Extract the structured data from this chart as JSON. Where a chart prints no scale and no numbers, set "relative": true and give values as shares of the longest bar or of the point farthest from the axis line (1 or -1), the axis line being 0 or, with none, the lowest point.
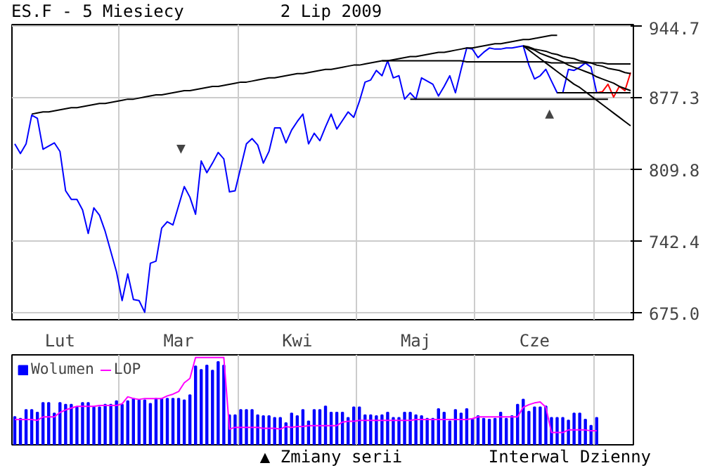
{
  "chart_data": [
    {
      "type": "line",
      "title": "ES.F - 5 Miesiecy",
      "subtitle": "2 Lip 2009",
      "categories": [
        null,
        null,
        null,
        null,
        null,
        null,
        null,
        null,
        "Lut",
        null,
        null,
        null,
        null,
        null,
        null,
        null,
        null,
        null,
        null,
        null,
        null,
        null,
        null,
        null,
        null,
        null,
        null,
        null,
        null,
        "Mar",
        null,
        null,
        null,
        null,
        null,
        null,
        null,
        null,
        null,
        null,
        null,
        null,
        null,
        null,
        null,
        null,
        null,
        null,
        null,
        null,
        "Kwi",
        null,
        null,
        null,
        null,
        null,
        null,
        null,
        null,
        null,
        null,
        null,
        null,
        null,
        null,
        null,
        null,
        null,
        null,
        null,
        null,
        "Maj",
        null,
        null,
        null,
        null,
        null,
        null,
        null,
        null,
        null,
        null,
        null,
        null,
        null,
        null,
        null,
        null,
        null,
        null,
        null,
        null,
        "Cze",
        null,
        null,
        null,
        null,
        null,
        null,
        null,
        null,
        null,
        null,
        null,
        null,
        null,
        null,
        null,
        null,
        null
      ],
      "ylim": [
        669,
        946
      ],
      "yticks": [
        {
          "value": 675,
          "label": "675.0"
        },
        742.4,
        809.8,
        877.3,
        944.7
      ],
      "grid": true,
      "annotations": [
        "▼",
        "▲"
      ],
      "series": [
        {
          "color": "#0000ff",
          "values": [
            834,
            825,
            834,
            861,
            858,
            829,
            832,
            835,
            827,
            790,
            782,
            782,
            772,
            750,
            774,
            767,
            752,
            733,
            714,
            687,
            712,
            688,
            687,
            676,
            722,
            724,
            755,
            761,
            758,
            776,
            794,
            784,
            768,
            818,
            807,
            816,
            826,
            820,
            789,
            790,
            812,
            834,
            839,
            833,
            816,
            827,
            849,
            849,
            835,
            847,
            855,
            862,
            834,
            844,
            837,
            850,
            862,
            848,
            856,
            864,
            859,
            874,
            892,
            894,
            903,
            898,
            912,
            896,
            898,
            876,
            882,
            876,
            896,
            893,
            890,
            879,
            888,
            898,
            882,
            904,
            924,
            923,
            915,
            920,
            924,
            923,
            923,
            924,
            924,
            925,
            926,
            908,
            895,
            898,
            904,
            893,
            882,
            882,
            904,
            903,
            906,
            910,
            906,
            882,
            null,
            null,
            null,
            null,
            null,
            null
          ]
        },
        {
          "color": "#ff0000",
          "values": [
            null,
            null,
            null,
            null,
            null,
            null,
            null,
            null,
            null,
            null,
            null,
            null,
            null,
            null,
            null,
            null,
            null,
            null,
            null,
            null,
            null,
            null,
            null,
            null,
            null,
            null,
            null,
            null,
            null,
            null,
            null,
            null,
            null,
            null,
            null,
            null,
            null,
            null,
            null,
            null,
            null,
            null,
            null,
            null,
            null,
            null,
            null,
            null,
            null,
            null,
            null,
            null,
            null,
            null,
            null,
            null,
            null,
            null,
            null,
            null,
            null,
            null,
            null,
            null,
            null,
            null,
            null,
            null,
            null,
            null,
            null,
            null,
            null,
            null,
            null,
            null,
            null,
            null,
            null,
            null,
            null,
            null,
            null,
            null,
            null,
            null,
            null,
            null,
            null,
            null,
            null,
            null,
            null,
            null,
            null,
            null,
            null,
            null,
            null,
            null,
            null,
            null,
            null,
            882,
            883,
            890,
            878,
            888,
            884,
            901
          ]
        },
        {
          "color": "#000000",
          "values": [
            null,
            null,
            null,
            862,
            863,
            864,
            864,
            865,
            866,
            867,
            868,
            868,
            869,
            870,
            871,
            872,
            872,
            873,
            874,
            875,
            876,
            876,
            877,
            878,
            879,
            880,
            880,
            881,
            882,
            883,
            884,
            884,
            885,
            886,
            887,
            888,
            888,
            889,
            890,
            891,
            892,
            892,
            893,
            894,
            895,
            896,
            896,
            897,
            898,
            899,
            900,
            900,
            901,
            902,
            903,
            904,
            904,
            905,
            906,
            907,
            908,
            908,
            909,
            910,
            911,
            912,
            912,
            913,
            914,
            915,
            916,
            916,
            917,
            918,
            919,
            920,
            920,
            921,
            922,
            923,
            924,
            924,
            925,
            926,
            927,
            928,
            928,
            929,
            930,
            931,
            932,
            932,
            933,
            934,
            935,
            936,
            936,
            null,
            null,
            null,
            null,
            null,
            null,
            null,
            null,
            null,
            null,
            null,
            null,
            null
          ]
        },
        {
          "color": "#000000",
          "values": [
            null,
            null,
            null,
            null,
            null,
            null,
            null,
            null,
            null,
            null,
            null,
            null,
            null,
            null,
            null,
            null,
            null,
            null,
            null,
            null,
            null,
            null,
            null,
            null,
            null,
            null,
            null,
            null,
            null,
            null,
            null,
            null,
            null,
            null,
            null,
            null,
            null,
            null,
            null,
            null,
            null,
            null,
            null,
            null,
            null,
            null,
            null,
            null,
            null,
            null,
            null,
            null,
            null,
            null,
            null,
            null,
            null,
            null,
            null,
            null,
            null,
            null,
            null,
            null,
            null,
            912,
            912,
            912,
            912,
            912,
            912,
            912,
            912,
            912,
            912,
            912,
            912,
            912,
            912,
            912,
            911,
            911,
            911,
            911,
            911,
            911,
            911,
            911,
            911,
            911,
            911,
            911,
            911,
            911,
            911,
            910,
            910,
            910,
            910,
            910,
            910,
            910,
            910,
            910,
            910,
            909,
            909,
            909,
            909,
            909
          ]
        },
        {
          "color": "#000000",
          "values": [
            null,
            null,
            null,
            null,
            null,
            null,
            null,
            null,
            null,
            null,
            null,
            null,
            null,
            null,
            null,
            null,
            null,
            null,
            null,
            null,
            null,
            null,
            null,
            null,
            null,
            null,
            null,
            null,
            null,
            null,
            null,
            null,
            null,
            null,
            null,
            null,
            null,
            null,
            null,
            null,
            null,
            null,
            null,
            null,
            null,
            null,
            null,
            null,
            null,
            null,
            null,
            null,
            null,
            null,
            null,
            null,
            null,
            null,
            null,
            null,
            null,
            null,
            null,
            null,
            null,
            null,
            null,
            null,
            null,
            null,
            876,
            876,
            876,
            876,
            876,
            876,
            876,
            876,
            876,
            876,
            876,
            876,
            876,
            876,
            876,
            876,
            876,
            876,
            876,
            876,
            876,
            876,
            876,
            876,
            876,
            876,
            876,
            876,
            876,
            876,
            876,
            876,
            876,
            876,
            876,
            876,
            null,
            null,
            null,
            null
          ]
        },
        {
          "color": "#000000",
          "values": [
            null,
            null,
            null,
            null,
            null,
            null,
            null,
            null,
            null,
            null,
            null,
            null,
            null,
            null,
            null,
            null,
            null,
            null,
            null,
            null,
            null,
            null,
            null,
            null,
            null,
            null,
            null,
            null,
            null,
            null,
            null,
            null,
            null,
            null,
            null,
            null,
            null,
            null,
            null,
            null,
            null,
            null,
            null,
            null,
            null,
            null,
            null,
            null,
            null,
            null,
            null,
            null,
            null,
            null,
            null,
            null,
            null,
            null,
            null,
            null,
            null,
            null,
            null,
            null,
            null,
            null,
            null,
            null,
            null,
            null,
            null,
            null,
            null,
            null,
            null,
            null,
            null,
            null,
            null,
            null,
            null,
            null,
            null,
            null,
            null,
            null,
            null,
            null,
            null,
            null,
            null,
            null,
            null,
            null,
            null,
            null,
            882,
            882,
            882,
            882,
            882,
            882,
            882,
            882,
            882,
            882,
            882,
            882,
            882,
            882
          ]
        },
        {
          "color": "#000000",
          "values": [
            null,
            null,
            null,
            null,
            null,
            null,
            null,
            null,
            null,
            null,
            null,
            null,
            null,
            null,
            null,
            null,
            null,
            null,
            null,
            null,
            null,
            null,
            null,
            null,
            null,
            null,
            null,
            null,
            null,
            null,
            null,
            null,
            null,
            null,
            null,
            null,
            null,
            null,
            null,
            null,
            null,
            null,
            null,
            null,
            null,
            null,
            null,
            null,
            null,
            null,
            null,
            null,
            null,
            null,
            null,
            null,
            null,
            null,
            null,
            null,
            null,
            null,
            null,
            null,
            null,
            null,
            null,
            null,
            null,
            null,
            null,
            null,
            null,
            null,
            null,
            null,
            null,
            null,
            null,
            null,
            null,
            null,
            null,
            null,
            null,
            null,
            null,
            null,
            null,
            null,
            926,
            925,
            923,
            922,
            921,
            919,
            918,
            916,
            915,
            914,
            912,
            911,
            910,
            908,
            907,
            905,
            904,
            903,
            901,
            900
          ]
        },
        {
          "color": "#000000",
          "values": [
            null,
            null,
            null,
            null,
            null,
            null,
            null,
            null,
            null,
            null,
            null,
            null,
            null,
            null,
            null,
            null,
            null,
            null,
            null,
            null,
            null,
            null,
            null,
            null,
            null,
            null,
            null,
            null,
            null,
            null,
            null,
            null,
            null,
            null,
            null,
            null,
            null,
            null,
            null,
            null,
            null,
            null,
            null,
            null,
            null,
            null,
            null,
            null,
            null,
            null,
            null,
            null,
            null,
            null,
            null,
            null,
            null,
            null,
            null,
            null,
            null,
            null,
            null,
            null,
            null,
            null,
            null,
            null,
            null,
            null,
            null,
            null,
            null,
            null,
            null,
            null,
            null,
            null,
            null,
            null,
            null,
            null,
            null,
            null,
            null,
            null,
            null,
            null,
            null,
            null,
            926,
            924,
            922,
            919,
            917,
            915,
            913,
            911,
            908,
            906,
            904,
            902,
            900,
            897,
            895,
            893,
            891,
            888,
            886,
            884
          ]
        },
        {
          "color": "#000000",
          "values": [
            null,
            null,
            null,
            null,
            null,
            null,
            null,
            null,
            null,
            null,
            null,
            null,
            null,
            null,
            null,
            null,
            null,
            null,
            null,
            null,
            null,
            null,
            null,
            null,
            null,
            null,
            null,
            null,
            null,
            null,
            null,
            null,
            null,
            null,
            null,
            null,
            null,
            null,
            null,
            null,
            null,
            null,
            null,
            null,
            null,
            null,
            null,
            null,
            null,
            null,
            null,
            null,
            null,
            null,
            null,
            null,
            null,
            null,
            null,
            null,
            null,
            null,
            null,
            null,
            null,
            null,
            null,
            null,
            null,
            null,
            null,
            null,
            null,
            null,
            null,
            null,
            null,
            null,
            null,
            null,
            null,
            null,
            null,
            null,
            null,
            null,
            null,
            null,
            null,
            null,
            926,
            922,
            918,
            914,
            910,
            906,
            902,
            898,
            894,
            890,
            887,
            883,
            879,
            875,
            871,
            867,
            863,
            859,
            855,
            851
          ]
        }
      ]
    },
    {
      "type": "bar",
      "relative": true,
      "legend": "top left",
      "grid": "x",
      "categories": [
        null,
        null,
        null,
        null,
        null,
        null,
        null,
        null,
        null,
        null,
        null,
        null,
        null,
        null,
        null,
        null,
        null,
        null,
        null,
        null,
        null,
        null,
        null,
        null,
        null,
        null,
        null,
        null,
        null,
        null,
        null,
        null,
        null,
        null,
        null,
        null,
        null,
        null,
        null,
        null,
        null,
        null,
        null,
        null,
        null,
        null,
        null,
        null,
        null,
        null,
        null,
        null,
        null,
        null,
        null,
        null,
        null,
        null,
        null,
        null,
        null,
        null,
        null,
        null,
        null,
        null,
        null,
        null,
        null,
        null,
        null,
        null,
        null,
        null,
        null,
        null,
        null,
        null,
        null,
        null,
        null,
        null,
        null,
        null,
        null,
        null,
        null,
        null,
        null,
        null,
        null,
        null,
        null,
        null,
        null,
        null,
        null,
        null,
        null,
        null,
        null,
        null,
        null,
        null,
        null,
        null,
        null,
        null,
        null,
        null
      ],
      "annotations": [
        "▲ Zmiany serii",
        "Interwal Dzienny"
      ],
      "series": [
        {
          "name": "Wolumen",
          "color": "#0000ff",
          "values": [
            0.32,
            0.3,
            0.4,
            0.4,
            0.37,
            0.48,
            0.48,
            0.36,
            0.48,
            0.46,
            0.46,
            0.43,
            0.48,
            0.48,
            0.43,
            0.43,
            0.46,
            0.46,
            0.5,
            0.46,
            0.5,
            0.53,
            0.51,
            0.51,
            0.47,
            0.53,
            0.53,
            0.53,
            0.53,
            0.53,
            0.51,
            0.57,
            0.9,
            0.86,
            0.91,
            0.85,
            0.95,
            0.91,
            0.34,
            0.34,
            0.4,
            0.4,
            0.4,
            0.34,
            0.33,
            0.33,
            0.31,
            0.31,
            0.25,
            0.36,
            0.33,
            0.4,
            0.27,
            0.4,
            0.4,
            0.44,
            0.37,
            0.37,
            0.37,
            0.31,
            0.43,
            0.43,
            0.34,
            0.34,
            0.33,
            0.34,
            0.37,
            0.31,
            0.31,
            0.37,
            0.37,
            0.34,
            0.33,
            0.3,
            0.3,
            0.41,
            0.37,
            0.27,
            0.4,
            0.36,
            0.41,
            0.29,
            0.33,
            0.3,
            0.29,
            0.3,
            0.37,
            0.3,
            0.33,
            0.46,
            0.52,
            0.38,
            0.43,
            0.43,
            0.44,
            0.31,
            0.31,
            0.31,
            0.28,
            0.36,
            0.36,
            0.29,
            0.22,
            0.31,
            null,
            null,
            null,
            null,
            null,
            null
          ]
        },
        {
          "name": "LOP",
          "type": "line",
          "color": "#ff00ff",
          "values": [
            0.29,
            0.29,
            0.29,
            0.29,
            0.28,
            0.32,
            0.32,
            0.32,
            0.37,
            0.4,
            0.42,
            0.44,
            0.44,
            0.44,
            0.44,
            0.45,
            0.45,
            0.45,
            0.45,
            0.47,
            0.55,
            0.53,
            0.52,
            0.53,
            0.53,
            0.53,
            0.53,
            0.56,
            0.58,
            0.61,
            0.71,
            0.76,
            1,
            1,
            1,
            1,
            1,
            1,
            0.18,
            0.2,
            0.2,
            0.2,
            0.2,
            0.2,
            0.19,
            0.19,
            0.19,
            0.18,
            0.21,
            0.2,
            0.21,
            0.21,
            0.22,
            0.22,
            0.22,
            0.22,
            0.22,
            0.22,
            0.26,
            0.27,
            0.27,
            0.28,
            0.28,
            0.28,
            0.28,
            0.28,
            0.28,
            0.28,
            0.28,
            0.28,
            0.28,
            0.29,
            0.29,
            0.29,
            0.29,
            0.29,
            0.29,
            0.29,
            0.29,
            0.29,
            0.29,
            0.3,
            0.32,
            0.32,
            0.32,
            0.32,
            0.32,
            0.32,
            0.32,
            0.32,
            0.43,
            0.46,
            0.48,
            0.49,
            0.43,
            0.14,
            0.14,
            0.14,
            0.17,
            0.17,
            0.17,
            0.17,
            0.16,
            0.16,
            null,
            null,
            null,
            null,
            null,
            null
          ]
        }
      ]
    }
  ]
}
